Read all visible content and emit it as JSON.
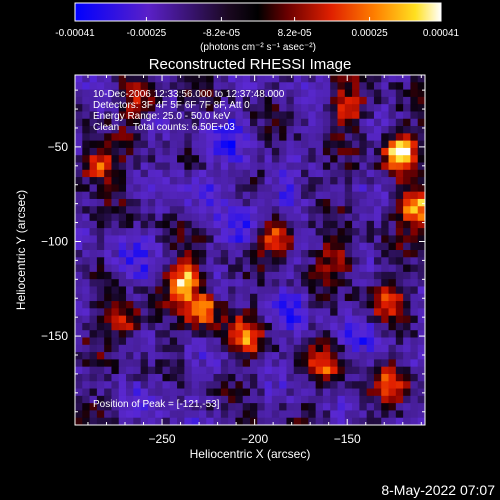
{
  "colorbar": {
    "min": -0.00041,
    "max": 0.00041,
    "colormap": "blue-purple-black-red-orange-yellow-white",
    "tick_labels": [
      "-0.00041",
      "-0.00025",
      "-8.2e-05",
      "8.2e-05",
      "0.00025",
      "0.00041"
    ],
    "unit_label": "(photons cm⁻² s⁻¹ asec⁻²)"
  },
  "plot": {
    "title": "Reconstructed RHESSI Image",
    "info_lines": [
      "10-Dec-2006 12:33:56.000 to 12:37:48.000",
      "Detectors: 3F 4F 5F 6F 7F 8F, Att 0",
      "Energy Range: 25.0 - 50.0 keV",
      "Clean     Total counts: 6.50E+03"
    ],
    "peak_label": "Position of Peak = [-121,-53]",
    "timestamp": "8-May-2022 07:07"
  },
  "chart_data": {
    "type": "heatmap",
    "title": "Reconstructed RHESSI Image",
    "xlabel": "Heliocentric X (arcsec)",
    "ylabel": "Heliocentric Y (arcsec)",
    "xlim": [
      -297,
      -108
    ],
    "ylim": [
      -197,
      -12
    ],
    "x_ticks": [
      -250,
      -200,
      -150
    ],
    "y_ticks": [
      -50,
      -100,
      -150
    ],
    "x_tick_labels": [
      "−250",
      "−200",
      "−150"
    ],
    "y_tick_labels": [
      "−50",
      "−100",
      "−150"
    ],
    "grid": false,
    "grid_shape": [
      48,
      48
    ],
    "value_range": [
      -0.00041,
      0.00041
    ],
    "peak": [
      -121,
      -53
    ],
    "bright_sources": [
      {
        "x": -121,
        "y": -53,
        "strength": 1.0
      },
      {
        "x": -112,
        "y": -83,
        "strength": 0.9
      },
      {
        "x": -188,
        "y": -97,
        "strength": 0.85
      },
      {
        "x": -238,
        "y": -120,
        "strength": 0.8
      },
      {
        "x": -228,
        "y": -135,
        "strength": 0.75
      },
      {
        "x": -205,
        "y": -150,
        "strength": 0.6
      },
      {
        "x": -285,
        "y": -60,
        "strength": 0.7
      },
      {
        "x": -270,
        "y": -142,
        "strength": 0.6
      },
      {
        "x": -160,
        "y": -165,
        "strength": 0.5
      },
      {
        "x": -125,
        "y": -175,
        "strength": 0.5
      },
      {
        "x": -150,
        "y": -30,
        "strength": 0.55
      },
      {
        "x": -262,
        "y": -25,
        "strength": 0.45
      },
      {
        "x": -155,
        "y": -110,
        "strength": 0.5
      },
      {
        "x": -130,
        "y": -130,
        "strength": 0.55
      },
      {
        "x": -175,
        "y": -68,
        "strength": 0.45
      }
    ],
    "dark_regions": [
      {
        "x": -182,
        "y": -72,
        "strength": 0.9
      },
      {
        "x": -205,
        "y": -95,
        "strength": 0.7
      },
      {
        "x": -230,
        "y": -70,
        "strength": 0.6
      },
      {
        "x": -268,
        "y": -110,
        "strength": 0.5
      },
      {
        "x": -250,
        "y": -180,
        "strength": 0.5
      },
      {
        "x": -180,
        "y": -135,
        "strength": 0.5
      },
      {
        "x": -215,
        "y": -45,
        "strength": 0.6
      },
      {
        "x": -140,
        "y": -150,
        "strength": 0.4
      }
    ]
  }
}
